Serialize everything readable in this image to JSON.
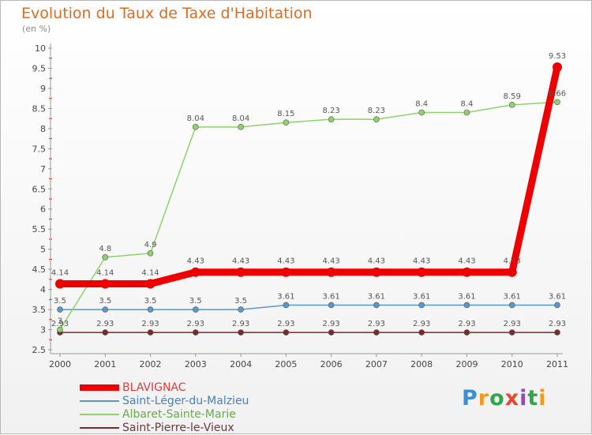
{
  "header": {
    "title": "Evolution du Taux de Taxe d'Habitation",
    "subtitle": "(en %)"
  },
  "logo": {
    "text": "Proxiti",
    "colors": [
      "#3a8fd6",
      "#f39a1e",
      "#2fa64a",
      "#e5482f",
      "#8b4fb5",
      "#2fa64a",
      "#f39a1e"
    ]
  },
  "chart_data": {
    "type": "line",
    "x": [
      2000,
      2001,
      2002,
      2003,
      2004,
      2005,
      2006,
      2007,
      2008,
      2009,
      2010,
      2011
    ],
    "ylim": [
      2.5,
      10
    ],
    "yticks": [
      2.5,
      3,
      3.5,
      4,
      4.5,
      5,
      5.5,
      6,
      6.5,
      7,
      7.5,
      8,
      8.5,
      9,
      9.5,
      10
    ],
    "grid": false,
    "legend": "bottom-left",
    "series": [
      {
        "name": "Saint-Pierre-le-Vieux",
        "color": "#7a2a2a",
        "values": [
          2.93,
          2.93,
          2.93,
          2.93,
          2.93,
          2.93,
          2.93,
          2.93,
          2.93,
          2.93,
          2.93,
          2.93
        ],
        "labels": [
          "2.93",
          "2.93",
          "2.93",
          "2.93",
          "2.93",
          "2.93",
          "2.93",
          "2.93",
          "2.93",
          "2.93",
          "2.93",
          "2.93"
        ]
      },
      {
        "name": "Saint-Léger-du-Malzieu",
        "color": "#5b97c9",
        "values": [
          3.5,
          3.5,
          3.5,
          3.5,
          3.5,
          3.61,
          3.61,
          3.61,
          3.61,
          3.61,
          3.61,
          3.61
        ],
        "labels": [
          "3.5",
          "3.5",
          "3.5",
          "3.5",
          "3.5",
          "3.61",
          "3.61",
          "3.61",
          "3.61",
          "3.61",
          "3.61",
          "3.61"
        ]
      },
      {
        "name": "Albaret-Sainte-Marie",
        "color": "#8fd16a",
        "values": [
          3,
          4.8,
          4.9,
          8.04,
          8.04,
          8.15,
          8.23,
          8.23,
          8.4,
          8.4,
          8.59,
          8.66
        ],
        "labels": [
          "3",
          "4.8",
          "4.9",
          "8.04",
          "8.04",
          "8.15",
          "8.23",
          "8.23",
          "8.4",
          "8.4",
          "8.59",
          "8.66"
        ]
      },
      {
        "name": "BLAVIGNAC",
        "color": "#ee0000",
        "values": [
          4.14,
          4.14,
          4.14,
          4.43,
          4.43,
          4.43,
          4.43,
          4.43,
          4.43,
          4.43,
          4.43,
          9.53
        ],
        "labels": [
          "4.14",
          "4.14",
          "4.14",
          "4.43",
          "4.43",
          "4.43",
          "4.43",
          "4.43",
          "4.43",
          "4.43",
          "4.43",
          "9.53"
        ]
      }
    ],
    "legend_order": [
      "BLAVIGNAC",
      "Saint-Léger-du-Malzieu",
      "Albaret-Sainte-Marie",
      "Saint-Pierre-le-Vieux"
    ]
  }
}
